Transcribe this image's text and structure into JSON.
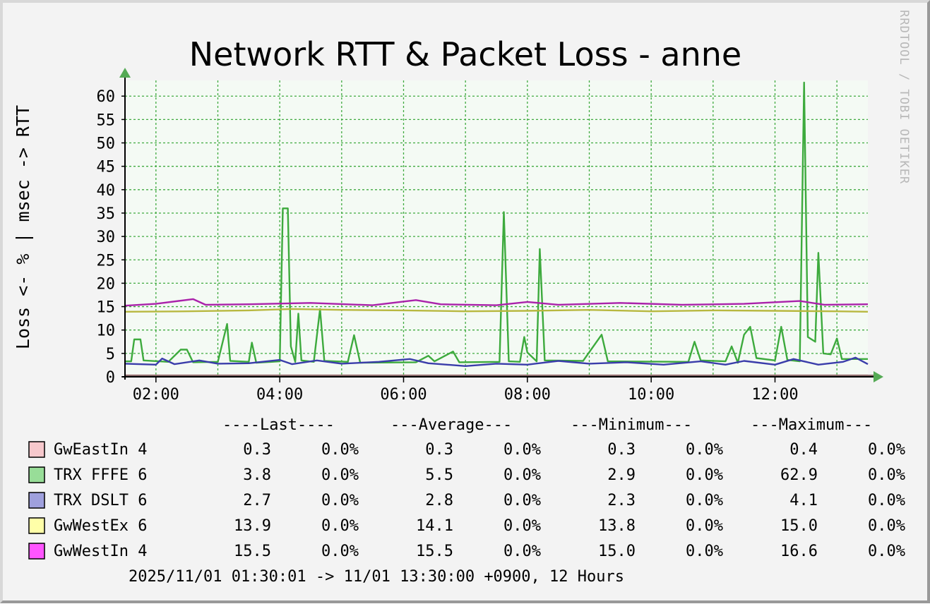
{
  "chart_data": {
    "type": "line",
    "title": "Network RTT & Packet Loss - anne",
    "ylabel": "Loss <- % | msec -> RTT",
    "watermark": "RRDTOOL / TOBI OETIKER",
    "ylim": [
      0,
      62.9
    ],
    "yticks": [
      0,
      5,
      10,
      15,
      20,
      25,
      30,
      35,
      40,
      45,
      50,
      55,
      60
    ],
    "xlim": [
      "01:30",
      "13:30"
    ],
    "xticks": [
      {
        "label": "02:00",
        "hour": 2
      },
      {
        "label": "04:00",
        "hour": 4
      },
      {
        "label": "06:00",
        "hour": 6
      },
      {
        "label": "08:00",
        "hour": 8
      },
      {
        "label": "10:00",
        "hour": 10
      },
      {
        "label": "12:00",
        "hour": 12
      }
    ],
    "grid": true,
    "colors": {
      "background": "#f3f3f3",
      "plot_area": "#f4faf4",
      "grid": "#3faa3f",
      "axis": "#000000",
      "arrow": "#55aa55",
      "loss_band": "#8b6b6b"
    },
    "series": [
      {
        "name": "GwEastIn 4",
        "color": "#f6c8cc",
        "line": "#e0a0a6",
        "points": [
          [
            1.5,
            0.3
          ],
          [
            13.5,
            0.3
          ]
        ]
      },
      {
        "name": "TRX FFFE 6",
        "color": "#98dd98",
        "line": "#3daa3d",
        "points": [
          [
            1.5,
            3.3
          ],
          [
            1.6,
            3.3
          ],
          [
            1.65,
            8
          ],
          [
            1.75,
            8
          ],
          [
            1.8,
            3.5
          ],
          [
            2.2,
            3.2
          ],
          [
            2.4,
            5.8
          ],
          [
            2.5,
            5.8
          ],
          [
            2.6,
            3.1
          ],
          [
            3.0,
            3.2
          ],
          [
            3.15,
            11.3
          ],
          [
            3.2,
            3.4
          ],
          [
            3.5,
            3.2
          ],
          [
            3.55,
            7.3
          ],
          [
            3.62,
            3.0
          ],
          [
            4.0,
            3.3
          ],
          [
            4.05,
            36
          ],
          [
            4.13,
            36
          ],
          [
            4.18,
            6.5
          ],
          [
            4.25,
            3.2
          ],
          [
            4.3,
            13.5
          ],
          [
            4.35,
            3.5
          ],
          [
            4.55,
            3.2
          ],
          [
            4.65,
            14.5
          ],
          [
            4.72,
            3.4
          ],
          [
            5.1,
            3.2
          ],
          [
            5.2,
            8.9
          ],
          [
            5.3,
            3.0
          ],
          [
            6.2,
            3.1
          ],
          [
            6.4,
            4.5
          ],
          [
            6.5,
            3.3
          ],
          [
            6.8,
            5.4
          ],
          [
            6.9,
            3.1
          ],
          [
            7.55,
            3.2
          ],
          [
            7.62,
            35.2
          ],
          [
            7.7,
            3.3
          ],
          [
            7.88,
            3.2
          ],
          [
            7.95,
            8.5
          ],
          [
            8.0,
            5.2
          ],
          [
            8.15,
            3.3
          ],
          [
            8.2,
            27.3
          ],
          [
            8.28,
            3.5
          ],
          [
            8.9,
            3.4
          ],
          [
            9.2,
            9.0
          ],
          [
            9.3,
            3.3
          ],
          [
            10.6,
            3.2
          ],
          [
            10.7,
            7.5
          ],
          [
            10.8,
            3.5
          ],
          [
            11.2,
            3.3
          ],
          [
            11.3,
            6.5
          ],
          [
            11.4,
            3.0
          ],
          [
            11.5,
            9.0
          ],
          [
            11.6,
            10.7
          ],
          [
            11.7,
            4.0
          ],
          [
            12.0,
            3.5
          ],
          [
            12.1,
            10.7
          ],
          [
            12.2,
            3.6
          ],
          [
            12.4,
            3.3
          ],
          [
            12.47,
            62.9
          ],
          [
            12.53,
            8.5
          ],
          [
            12.65,
            7.5
          ],
          [
            12.7,
            26.5
          ],
          [
            12.78,
            5.0
          ],
          [
            12.9,
            4.8
          ],
          [
            13.0,
            8.2
          ],
          [
            13.08,
            3.8
          ],
          [
            13.5,
            3.8
          ]
        ]
      },
      {
        "name": "TRX DSLT 6",
        "color": "#9fa0dd",
        "line": "#3a3daa",
        "points": [
          [
            1.5,
            2.8
          ],
          [
            2.0,
            2.6
          ],
          [
            2.1,
            3.9
          ],
          [
            2.3,
            2.7
          ],
          [
            2.7,
            3.5
          ],
          [
            3.0,
            2.8
          ],
          [
            3.5,
            2.9
          ],
          [
            4.0,
            3.6
          ],
          [
            4.2,
            2.7
          ],
          [
            4.6,
            3.5
          ],
          [
            5.0,
            2.8
          ],
          [
            5.6,
            3.2
          ],
          [
            6.1,
            3.8
          ],
          [
            6.4,
            2.9
          ],
          [
            7.0,
            2.3
          ],
          [
            7.5,
            2.8
          ],
          [
            8.0,
            2.6
          ],
          [
            8.5,
            3.4
          ],
          [
            9.0,
            2.8
          ],
          [
            9.6,
            3.1
          ],
          [
            10.2,
            2.6
          ],
          [
            10.8,
            3.3
          ],
          [
            11.2,
            2.6
          ],
          [
            11.5,
            3.4
          ],
          [
            12.0,
            2.6
          ],
          [
            12.3,
            3.8
          ],
          [
            12.7,
            2.6
          ],
          [
            13.1,
            3.2
          ],
          [
            13.3,
            4.1
          ],
          [
            13.5,
            2.7
          ]
        ]
      },
      {
        "name": "GwWestEx 6",
        "color": "#ffffa8",
        "line": "#b8b840",
        "points": [
          [
            1.5,
            13.9
          ],
          [
            2.5,
            14.0
          ],
          [
            3.5,
            14.2
          ],
          [
            4.2,
            14.5
          ],
          [
            5.0,
            14.3
          ],
          [
            6.0,
            14.2
          ],
          [
            7.0,
            14.0
          ],
          [
            8.0,
            14.1
          ],
          [
            9.0,
            14.3
          ],
          [
            10.0,
            14.0
          ],
          [
            11.0,
            14.2
          ],
          [
            12.0,
            14.1
          ],
          [
            13.0,
            14.0
          ],
          [
            13.5,
            13.9
          ]
        ]
      },
      {
        "name": "GwWestIn 4",
        "color": "#ff55ff",
        "line": "#aa22aa",
        "points": [
          [
            1.5,
            15.2
          ],
          [
            2.0,
            15.6
          ],
          [
            2.6,
            16.6
          ],
          [
            2.8,
            15.4
          ],
          [
            3.5,
            15.5
          ],
          [
            4.5,
            15.8
          ],
          [
            5.5,
            15.3
          ],
          [
            6.2,
            16.4
          ],
          [
            6.6,
            15.5
          ],
          [
            7.5,
            15.3
          ],
          [
            8.0,
            16.0
          ],
          [
            8.5,
            15.4
          ],
          [
            9.5,
            15.8
          ],
          [
            10.5,
            15.4
          ],
          [
            11.5,
            15.6
          ],
          [
            12.4,
            16.2
          ],
          [
            12.8,
            15.4
          ],
          [
            13.5,
            15.5
          ]
        ]
      }
    ],
    "legend": {
      "headers": [
        "----Last----",
        "---Average---",
        "---Minimum---",
        "---Maximum---"
      ],
      "rows": [
        {
          "name": "GwEastIn 4",
          "color": "#f6c8cc",
          "last": "0.3",
          "last_loss": "0.0%",
          "avg": "0.3",
          "avg_loss": "0.0%",
          "min": "0.3",
          "min_loss": "0.0%",
          "max": "0.4",
          "max_loss": "0.0%"
        },
        {
          "name": "TRX FFFE 6",
          "color": "#98dd98",
          "last": "3.8",
          "last_loss": "0.0%",
          "avg": "5.5",
          "avg_loss": "0.0%",
          "min": "2.9",
          "min_loss": "0.0%",
          "max": "62.9",
          "max_loss": "0.0%"
        },
        {
          "name": "TRX DSLT 6",
          "color": "#9fa0dd",
          "last": "2.7",
          "last_loss": "0.0%",
          "avg": "2.8",
          "avg_loss": "0.0%",
          "min": "2.3",
          "min_loss": "0.0%",
          "max": "4.1",
          "max_loss": "0.0%"
        },
        {
          "name": "GwWestEx 6",
          "color": "#ffffa8",
          "last": "13.9",
          "last_loss": "0.0%",
          "avg": "14.1",
          "avg_loss": "0.0%",
          "min": "13.8",
          "min_loss": "0.0%",
          "max": "15.0",
          "max_loss": "0.0%"
        },
        {
          "name": "GwWestIn 4",
          "color": "#ff55ff",
          "last": "15.5",
          "last_loss": "0.0%",
          "avg": "15.5",
          "avg_loss": "0.0%",
          "min": "15.0",
          "min_loss": "0.0%",
          "max": "16.6",
          "max_loss": "0.0%"
        }
      ]
    },
    "footer": "2025/11/01 01:30:01 -> 11/01 13:30:00 +0900, 12 Hours"
  }
}
